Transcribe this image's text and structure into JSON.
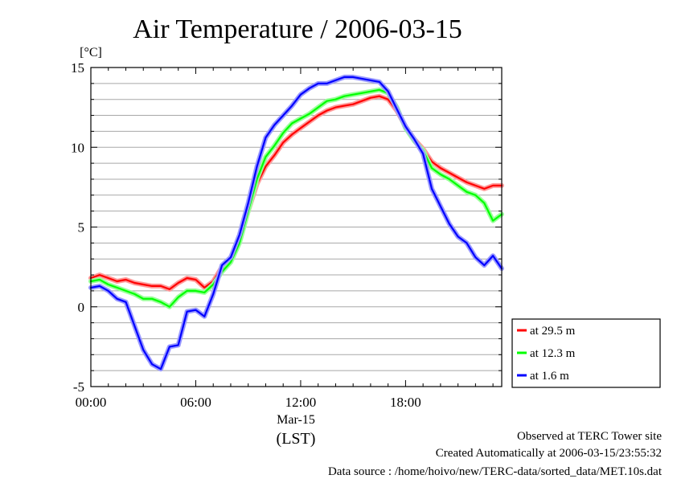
{
  "chart_data": {
    "type": "line",
    "title": "Air Temperature / 2006-03-15",
    "ylabel": "[°C]",
    "xlabel": "(LST)",
    "x_date_label": "Mar-15",
    "x_unit": "hours LST",
    "xlim": [
      0,
      23.5
    ],
    "ylim": [
      -5,
      15
    ],
    "x_ticks": [
      0,
      6,
      12,
      18
    ],
    "x_tick_labels": [
      "00:00",
      "06:00",
      "12:00",
      "18:00"
    ],
    "y_ticks": [
      -5,
      0,
      5,
      10,
      15
    ],
    "y_tick_labels": [
      "-5",
      "0",
      "5",
      "10",
      "15"
    ],
    "grid": true,
    "legend_position": "right-bottom",
    "series": [
      {
        "name": "at 29.5 m",
        "color": "#ff0000",
        "x": [
          0,
          0.5,
          1,
          1.5,
          2,
          2.5,
          3,
          3.5,
          4,
          4.5,
          5,
          5.5,
          6,
          6.5,
          7,
          7.5,
          8,
          8.5,
          9,
          9.5,
          10,
          10.5,
          11,
          11.5,
          12,
          12.5,
          13,
          13.5,
          14,
          14.5,
          15,
          15.5,
          16,
          16.5,
          17,
          17.5,
          18,
          18.5,
          19,
          19.5,
          20,
          20.5,
          21,
          21.5,
          22,
          22.5,
          23,
          23.5
        ],
        "values": [
          1.8,
          2.0,
          1.8,
          1.6,
          1.7,
          1.5,
          1.4,
          1.3,
          1.3,
          1.1,
          1.5,
          1.8,
          1.7,
          1.2,
          1.6,
          2.5,
          3.1,
          4.2,
          6.0,
          7.7,
          8.8,
          9.5,
          10.3,
          10.8,
          11.2,
          11.6,
          12.0,
          12.3,
          12.5,
          12.6,
          12.7,
          12.9,
          13.1,
          13.2,
          13.0,
          12.3,
          11.3,
          10.5,
          9.9,
          9.1,
          8.7,
          8.4,
          8.1,
          7.8,
          7.6,
          7.4,
          7.6,
          7.6
        ]
      },
      {
        "name": "at 12.3 m",
        "color": "#00ff00",
        "x": [
          0,
          0.5,
          1,
          1.5,
          2,
          2.5,
          3,
          3.5,
          4,
          4.5,
          5,
          5.5,
          6,
          6.5,
          7,
          7.5,
          8,
          8.5,
          9,
          9.5,
          10,
          10.5,
          11,
          11.5,
          12,
          12.5,
          13,
          13.5,
          14,
          14.5,
          15,
          15.5,
          16,
          16.5,
          17,
          17.5,
          18,
          18.5,
          19,
          19.5,
          20,
          20.5,
          21,
          21.5,
          22,
          22.5,
          23,
          23.5
        ],
        "values": [
          1.6,
          1.7,
          1.4,
          1.2,
          1.0,
          0.8,
          0.5,
          0.5,
          0.3,
          0.0,
          0.6,
          1.0,
          1.0,
          0.9,
          1.4,
          2.2,
          2.8,
          4.0,
          6.0,
          8.0,
          9.4,
          10.1,
          10.9,
          11.5,
          11.8,
          12.1,
          12.5,
          12.9,
          13.0,
          13.2,
          13.3,
          13.4,
          13.5,
          13.6,
          13.4,
          12.5,
          11.2,
          10.4,
          9.8,
          8.7,
          8.3,
          8.0,
          7.6,
          7.2,
          7.0,
          6.5,
          5.4,
          5.8
        ]
      },
      {
        "name": "at 1.6 m",
        "color": "#0000ff",
        "x": [
          0,
          0.5,
          1,
          1.5,
          2,
          2.5,
          3,
          3.5,
          4,
          4.5,
          5,
          5.5,
          6,
          6.5,
          7,
          7.5,
          8,
          8.5,
          9,
          9.5,
          10,
          10.5,
          11,
          11.5,
          12,
          12.5,
          13,
          13.5,
          14,
          14.5,
          15,
          15.5,
          16,
          16.5,
          17,
          17.5,
          18,
          18.5,
          19,
          19.5,
          20,
          20.5,
          21,
          21.5,
          22,
          22.5,
          23,
          23.5
        ],
        "values": [
          1.2,
          1.3,
          1.0,
          0.5,
          0.3,
          -1.2,
          -2.7,
          -3.6,
          -3.9,
          -2.5,
          -2.4,
          -0.3,
          -0.2,
          -0.6,
          0.8,
          2.6,
          3.1,
          4.5,
          6.5,
          8.8,
          10.6,
          11.4,
          12.0,
          12.6,
          13.3,
          13.7,
          14.0,
          14.0,
          14.2,
          14.4,
          14.4,
          14.3,
          14.2,
          14.1,
          13.5,
          12.4,
          11.3,
          10.5,
          9.6,
          7.4,
          6.3,
          5.2,
          4.4,
          4.0,
          3.1,
          2.6,
          3.2,
          2.4
        ]
      }
    ]
  },
  "footer": {
    "site": "Observed at TERC Tower site",
    "created": "Created Automatically at 2006-03-15/23:55:32",
    "source": "Data source : /home/hoivo/new/TERC-data/sorted_data/MET.10s.dat"
  }
}
